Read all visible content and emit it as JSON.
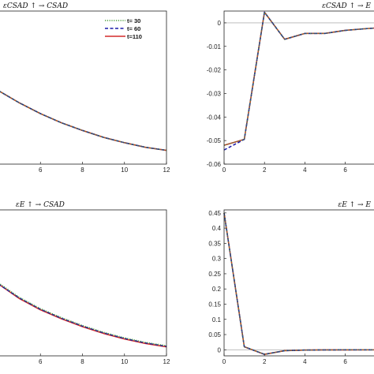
{
  "colors": {
    "t30": "#4a9a3a",
    "t60": "#1a1aa8",
    "t110": "#d42a2a",
    "zero_line": "#b4b4b4",
    "axis": "#222222"
  },
  "legend": {
    "entries": [
      {
        "label": "t= 30",
        "style": "dotted",
        "color_key": "t30"
      },
      {
        "label": "t= 60",
        "style": "dashed",
        "color_key": "t60"
      },
      {
        "label": "t=110",
        "style": "solid",
        "color_key": "t110"
      }
    ]
  },
  "chart_data": [
    {
      "type": "line",
      "title": "εCSAD ↑ → CSAD",
      "xlim": [
        4,
        12
      ],
      "x_ticks": [
        6,
        8,
        10,
        12
      ],
      "y_ticks": [],
      "legend_position": "top-right",
      "series": [
        {
          "name": "t= 30",
          "x": [
            4,
            5,
            6,
            7,
            8,
            9,
            10,
            11,
            12
          ],
          "y": [
            0.68,
            0.6,
            0.53,
            0.47,
            0.42,
            0.375,
            0.34,
            0.31,
            0.29
          ]
        },
        {
          "name": "t= 60",
          "x": [
            4,
            5,
            6,
            7,
            8,
            9,
            10,
            11,
            12
          ],
          "y": [
            0.68,
            0.6,
            0.53,
            0.47,
            0.42,
            0.375,
            0.34,
            0.31,
            0.29
          ]
        },
        {
          "name": "t=110",
          "x": [
            4,
            5,
            6,
            7,
            8,
            9,
            10,
            11,
            12
          ],
          "y": [
            0.68,
            0.6,
            0.53,
            0.47,
            0.42,
            0.375,
            0.34,
            0.31,
            0.29
          ]
        }
      ],
      "ylim": [
        0.2,
        1.2
      ]
    },
    {
      "type": "line",
      "title": "εCSAD ↑ → E",
      "xlim": [
        0,
        7.5
      ],
      "ylim": [
        -0.06,
        0.005
      ],
      "x_ticks": [
        0,
        2,
        4,
        6
      ],
      "y_ticks": [
        0,
        -0.01,
        -0.02,
        -0.03,
        -0.04,
        -0.05,
        -0.06
      ],
      "y_tick_labels": [
        "0",
        "-0.01",
        "-0.02",
        "-0.03",
        "-0.04",
        "-0.05",
        "-0.06"
      ],
      "zero_line": true,
      "series": [
        {
          "name": "t= 30",
          "x": [
            0,
            1,
            2,
            3,
            4,
            5,
            6,
            7,
            7.5
          ],
          "y": [
            -0.052,
            -0.0495,
            0.0045,
            -0.007,
            -0.0045,
            -0.0045,
            -0.0032,
            -0.0025,
            -0.0022
          ]
        },
        {
          "name": "t= 60",
          "x": [
            0,
            1,
            2,
            3,
            4,
            5,
            6,
            7,
            7.5
          ],
          "y": [
            -0.054,
            -0.0495,
            0.0045,
            -0.007,
            -0.0045,
            -0.0045,
            -0.0032,
            -0.0025,
            -0.0022
          ]
        },
        {
          "name": "t=110",
          "x": [
            0,
            1,
            2,
            3,
            4,
            5,
            6,
            7,
            7.5
          ],
          "y": [
            -0.052,
            -0.0495,
            0.0045,
            -0.007,
            -0.0045,
            -0.0045,
            -0.0032,
            -0.0025,
            -0.0022
          ]
        }
      ]
    },
    {
      "type": "line",
      "title": "εE ↑ → CSAD",
      "xlim": [
        4,
        12
      ],
      "x_ticks": [
        6,
        8,
        10,
        12
      ],
      "x_tick_labels": [
        "6",
        "8",
        "10",
        "12"
      ],
      "y_ticks": [],
      "series": [
        {
          "name": "t= 30",
          "x": [
            4,
            5,
            6,
            7,
            8,
            9,
            10,
            11,
            12
          ],
          "y": [
            0.75,
            0.62,
            0.52,
            0.44,
            0.37,
            0.31,
            0.26,
            0.22,
            0.19
          ]
        },
        {
          "name": "t= 60",
          "x": [
            4,
            5,
            6,
            7,
            8,
            9,
            10,
            11,
            12
          ],
          "y": [
            0.74,
            0.615,
            0.515,
            0.435,
            0.365,
            0.305,
            0.255,
            0.215,
            0.185
          ]
        },
        {
          "name": "t=110",
          "x": [
            4,
            5,
            6,
            7,
            8,
            9,
            10,
            11,
            12
          ],
          "y": [
            0.74,
            0.61,
            0.51,
            0.43,
            0.36,
            0.3,
            0.25,
            0.21,
            0.18
          ]
        }
      ],
      "ylim": [
        0.1,
        1.4
      ]
    },
    {
      "type": "line",
      "title": "εE ↑ → E",
      "xlim": [
        0,
        7.5
      ],
      "ylim": [
        -0.02,
        0.46
      ],
      "x_ticks": [
        0,
        2,
        4,
        6
      ],
      "y_ticks": [
        0.45,
        0.4,
        0.35,
        0.3,
        0.25,
        0.2,
        0.15,
        0.1,
        0.05,
        0
      ],
      "y_tick_labels": [
        "0.45",
        "0.4",
        "0.35",
        "0.3",
        "0.25",
        "0.2",
        "0.15",
        "0.1",
        "0.05",
        "0"
      ],
      "zero_line": true,
      "series": [
        {
          "name": "t= 30",
          "x": [
            0,
            1,
            2,
            3,
            4,
            5,
            6,
            7,
            7.5
          ],
          "y": [
            0.45,
            0.01,
            -0.015,
            -0.003,
            -0.001,
            -0.0005,
            -0.0003,
            -0.0002,
            -0.0002
          ]
        },
        {
          "name": "t= 60",
          "x": [
            0,
            1,
            2,
            3,
            4,
            5,
            6,
            7,
            7.5
          ],
          "y": [
            0.45,
            0.01,
            -0.015,
            -0.003,
            -0.001,
            -0.0005,
            -0.0003,
            -0.0002,
            -0.0002
          ]
        },
        {
          "name": "t=110",
          "x": [
            0,
            1,
            2,
            3,
            4,
            5,
            6,
            7,
            7.5
          ],
          "y": [
            0.45,
            0.01,
            -0.015,
            -0.003,
            -0.001,
            -0.0005,
            -0.0003,
            -0.0002,
            -0.0002
          ]
        }
      ]
    }
  ]
}
